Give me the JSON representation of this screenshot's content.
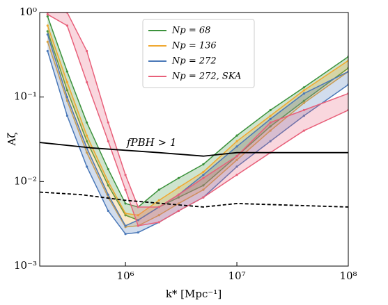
{
  "chart_data": {
    "type": "band",
    "xlabel": "k* [Mpc⁻¹]",
    "ylabel": "Aζ",
    "xscale": "log",
    "yscale": "log",
    "xlim": [
      170000,
      100000000
    ],
    "ylim": [
      0.001,
      1
    ],
    "xticks": [
      {
        "value": 1000000,
        "label": "10⁶"
      },
      {
        "value": 10000000,
        "label": "10⁷"
      },
      {
        "value": 100000000,
        "label": "10⁸"
      }
    ],
    "yticks": [
      {
        "value": 0.001,
        "label": "10⁻³"
      },
      {
        "value": 0.01,
        "label": "10⁻²"
      },
      {
        "value": 0.1,
        "label": "10⁻¹"
      },
      {
        "value": 1,
        "label": "10⁰"
      }
    ],
    "legend": "upper center",
    "x": [
      200000,
      300000,
      450000,
      700000,
      1000000,
      1300000,
      2000000,
      3000000,
      5000000,
      10000000,
      20000000,
      40000000,
      100000000
    ],
    "series": [
      {
        "name": "Np = 68",
        "color": "#3c923c",
        "upper": [
          0.9,
          0.2,
          0.05,
          0.014,
          0.0055,
          0.005,
          0.008,
          0.011,
          0.016,
          0.035,
          0.07,
          0.13,
          0.3
        ],
        "lower": [
          0.6,
          0.12,
          0.03,
          0.009,
          0.004,
          0.0035,
          0.005,
          0.0065,
          0.009,
          0.02,
          0.045,
          0.09,
          0.22
        ]
      },
      {
        "name": "Np = 136",
        "color": "#f0a830",
        "upper": [
          0.7,
          0.15,
          0.035,
          0.01,
          0.0042,
          0.004,
          0.006,
          0.0085,
          0.013,
          0.03,
          0.06,
          0.12,
          0.27
        ],
        "lower": [
          0.45,
          0.09,
          0.022,
          0.0065,
          0.0029,
          0.003,
          0.004,
          0.0055,
          0.008,
          0.018,
          0.04,
          0.085,
          0.2
        ]
      },
      {
        "name": "Np = 272",
        "color": "#4a78b8",
        "upper": [
          0.55,
          0.1,
          0.025,
          0.007,
          0.003,
          0.0035,
          0.005,
          0.007,
          0.012,
          0.026,
          0.055,
          0.11,
          0.2
        ],
        "lower": [
          0.35,
          0.06,
          0.015,
          0.0045,
          0.0024,
          0.0025,
          0.0033,
          0.0045,
          0.0065,
          0.015,
          0.03,
          0.06,
          0.14
        ]
      },
      {
        "name": "Np = 272, SKA",
        "color": "#e8607a",
        "upper": [
          1,
          1,
          0.35,
          0.05,
          0.012,
          0.005,
          0.005,
          0.007,
          0.011,
          0.02,
          0.05,
          0.07,
          0.11
        ],
        "lower": [
          0.95,
          0.7,
          0.15,
          0.03,
          0.008,
          0.003,
          0.0033,
          0.0045,
          0.0065,
          0.012,
          0.022,
          0.04,
          0.07
        ]
      }
    ],
    "lines": [
      {
        "style": "solid",
        "x": [
          170000,
          500000,
          2000000,
          5000000,
          10000000,
          100000000
        ],
        "values": [
          0.029,
          0.025,
          0.022,
          0.02,
          0.022,
          0.022
        ]
      },
      {
        "style": "dashed",
        "x": [
          170000,
          400000,
          1000000,
          5000000,
          10000000,
          100000000
        ],
        "values": [
          0.0075,
          0.007,
          0.006,
          0.005,
          0.0055,
          0.005
        ]
      }
    ],
    "annotation": "fPBH > 1"
  }
}
